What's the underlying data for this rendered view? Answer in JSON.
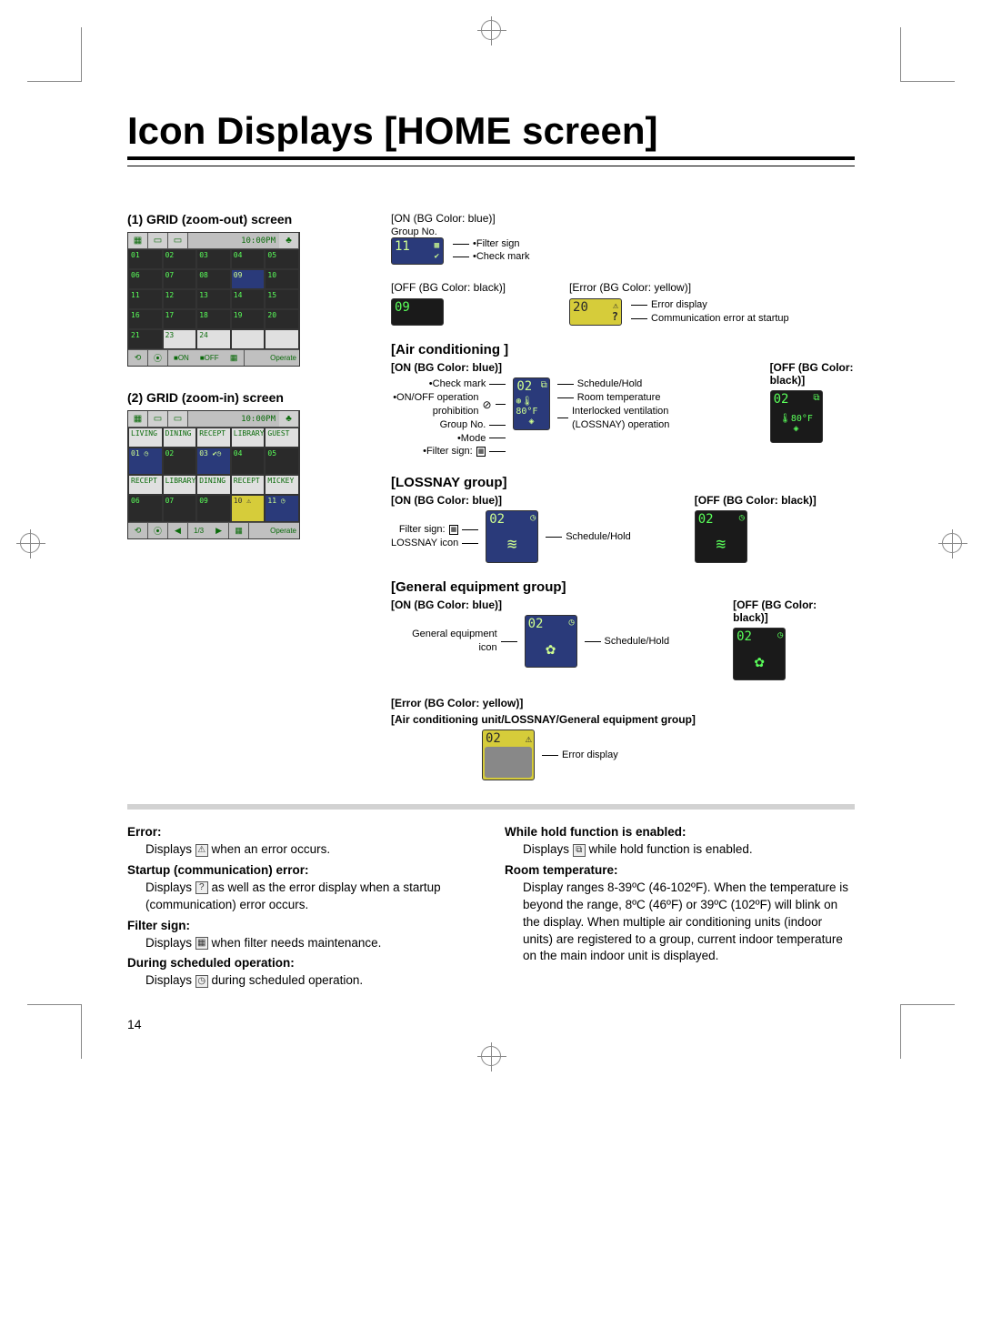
{
  "page_number": "14",
  "title": "Icon Displays [HOME screen]",
  "left": {
    "grid_out": {
      "header": "(1) GRID (zoom-out) screen",
      "clock": "10:00PM",
      "cells": [
        [
          "01",
          "02",
          "03",
          "04",
          "05"
        ],
        [
          "06",
          "07",
          "08",
          "09",
          "10"
        ],
        [
          "11",
          "12",
          "13",
          "14",
          "15"
        ],
        [
          "16",
          "17",
          "18",
          "19",
          "20"
        ],
        [
          "21",
          "23",
          "24",
          "",
          ""
        ]
      ],
      "legend_on": "■ON",
      "legend_off": "■OFF",
      "operate": "Operate"
    },
    "grid_in": {
      "header": "(2) GRID (zoom-in) screen",
      "clock": "10:00PM",
      "names_row1": [
        "LIVING",
        "DINING",
        "RECEPT",
        "LIBRARY",
        "GUEST"
      ],
      "names_row2": [
        "RECEPT",
        "LIBRARY",
        "DINING",
        "RECEPT",
        "MICKEY"
      ],
      "page": "1/3",
      "operate": "Operate"
    }
  },
  "right": {
    "on_group": {
      "label": "[ON (BG Color: blue)]",
      "sub": "Group No.",
      "tile_num": "11",
      "callouts": [
        "•Filter sign",
        "•Check mark"
      ]
    },
    "off_group": {
      "label": "[OFF (BG Color: black)]",
      "tile_num": "09"
    },
    "error_group": {
      "label": "[Error (BG Color: yellow)]",
      "tile_num": "20",
      "callouts": [
        "Error display",
        "Communication error at startup"
      ]
    },
    "ac": {
      "title": "[Air conditioning ]",
      "on_label": "[ON (BG Color: blue)]",
      "off_label": "[OFF (BG Color: black)]",
      "tile_num": "02",
      "temp": "80°F",
      "left_annot": [
        "•Check mark",
        "•ON/OFF operation prohibition",
        "Group No.",
        "•Mode",
        "•Filter sign:"
      ],
      "right_annot": [
        "Schedule/Hold",
        "Room temperature",
        "Interlocked ventilation (LOSSNAY) operation"
      ]
    },
    "lossnay": {
      "title": "[LOSSNAY group]",
      "on_label": "[ON (BG Color: blue)]",
      "off_label": "[OFF (BG Color: black)]",
      "tile_num": "02",
      "left_annot": [
        "Filter sign:",
        "LOSSNAY icon"
      ],
      "right_annot": [
        "Schedule/Hold"
      ]
    },
    "general": {
      "title": "[General equipment group]",
      "on_label": "[ON (BG Color: blue)]",
      "off_label": "[OFF (BG Color: black)]",
      "tile_num": "02",
      "left_annot": [
        "General equipment icon"
      ],
      "right_annot": [
        "Schedule/Hold"
      ]
    },
    "error_section": {
      "line1": "[Error (BG Color: yellow)]",
      "line2": "[Air conditioning unit/LOSSNAY/General equipment group]",
      "tile_num": "02",
      "callout": "Error display"
    }
  },
  "notes": {
    "left": [
      {
        "head": "Error:",
        "body": "Displays ⚠ when an error occurs."
      },
      {
        "head": "Startup (communication) error:",
        "body": "Displays ? as well as the error display when a startup (communication) error occurs."
      },
      {
        "head": "Filter sign:",
        "body": "Displays ▦ when filter needs maintenance."
      },
      {
        "head": "During scheduled operation:",
        "body": "Displays ◷ during scheduled operation."
      }
    ],
    "right": [
      {
        "head": "While hold function is enabled:",
        "body": "Displays ⧉ while hold function is enabled."
      },
      {
        "head": "Room temperature:",
        "body": "Display ranges 8-39ºC (46-102ºF). When the temperature is beyond the range,  8ºC (46ºF) or 39ºC (102ºF) will blink on the display. When multiple air conditioning units (indoor units) are registered to a group, current indoor temperature on the main indoor unit is displayed."
      }
    ]
  },
  "glyphs": {
    "warn": "⚠",
    "question": "?",
    "filter": "▦",
    "clock": "◷",
    "hold": "⧉",
    "check": "✔",
    "diamond": "◈",
    "gear": "✿"
  }
}
